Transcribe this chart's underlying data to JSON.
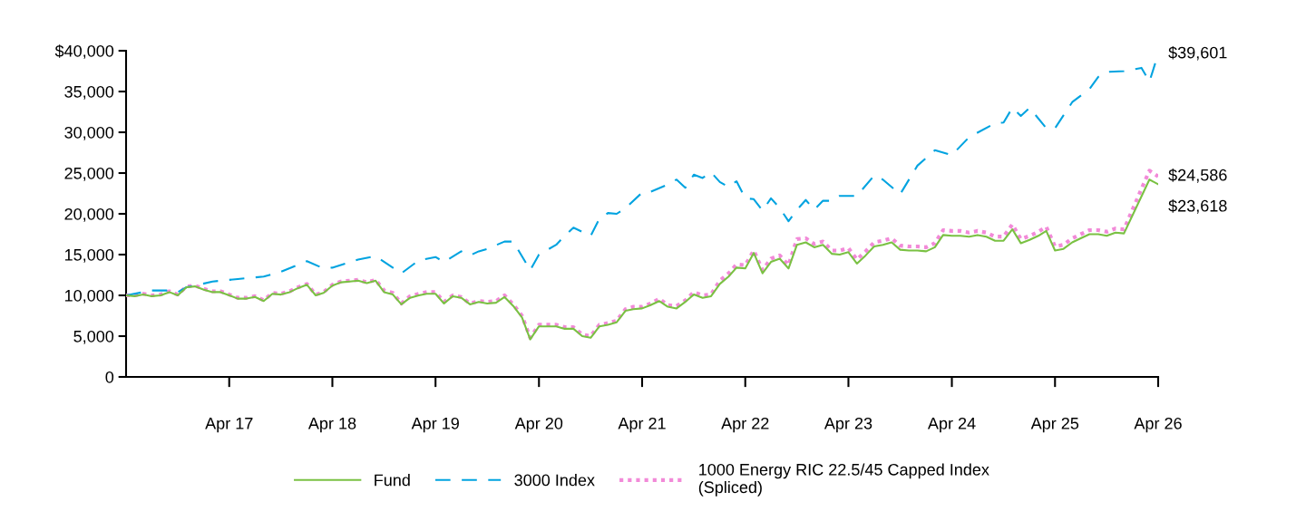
{
  "chart_data": {
    "type": "line",
    "x": [
      "2016-04",
      "2016-05",
      "2016-06",
      "2016-07",
      "2016-08",
      "2016-09",
      "2016-10",
      "2016-11",
      "2016-12",
      "2017-01",
      "2017-02",
      "2017-03",
      "2017-04",
      "2017-05",
      "2017-06",
      "2017-07",
      "2017-08",
      "2017-09",
      "2017-10",
      "2017-11",
      "2017-12",
      "2018-01",
      "2018-02",
      "2018-03",
      "2018-04",
      "2018-05",
      "2018-06",
      "2018-07",
      "2018-08",
      "2018-09",
      "2018-10",
      "2018-11",
      "2018-12",
      "2019-01",
      "2019-02",
      "2019-03",
      "2019-04",
      "2019-05",
      "2019-06",
      "2019-07",
      "2019-08",
      "2019-09",
      "2019-10",
      "2019-11",
      "2019-12",
      "2020-01",
      "2020-02",
      "2020-03",
      "2020-04",
      "2020-05",
      "2020-06",
      "2020-07",
      "2020-08",
      "2020-09",
      "2020-10",
      "2020-11",
      "2020-12",
      "2021-01",
      "2021-02",
      "2021-03",
      "2021-04",
      "2021-05",
      "2021-06",
      "2021-07",
      "2021-08",
      "2021-09",
      "2021-10",
      "2021-11",
      "2021-12",
      "2022-01",
      "2022-02",
      "2022-03",
      "2022-04",
      "2022-05",
      "2022-06",
      "2022-07",
      "2022-08",
      "2022-09",
      "2022-10",
      "2022-11",
      "2022-12",
      "2023-01",
      "2023-02",
      "2023-03",
      "2023-04",
      "2023-05",
      "2023-06",
      "2023-07",
      "2023-08",
      "2023-09",
      "2023-10",
      "2023-11",
      "2023-12",
      "2024-01",
      "2024-02",
      "2024-03",
      "2024-04",
      "2024-05",
      "2024-06",
      "2024-07",
      "2024-08",
      "2024-09",
      "2024-10",
      "2024-11",
      "2024-12",
      "2025-01",
      "2025-02",
      "2025-03",
      "2025-04",
      "2025-05",
      "2025-06",
      "2025-07",
      "2025-08",
      "2025-09",
      "2025-10",
      "2025-11",
      "2025-12",
      "2026-03",
      "2026-04"
    ],
    "series": [
      {
        "name": "Fund",
        "color": "#7ac143",
        "line_style": "solid",
        "values": [
          10000,
          9900,
          10100,
          9900,
          10000,
          10400,
          10000,
          11000,
          11100,
          10700,
          10400,
          10400,
          10000,
          9600,
          9600,
          9800,
          9300,
          10200,
          10100,
          10400,
          10900,
          11300,
          10000,
          10300,
          11200,
          11600,
          11700,
          11800,
          11500,
          11800,
          10400,
          10100,
          8900,
          9700,
          10000,
          10200,
          10200,
          9000,
          9900,
          9700,
          8900,
          9200,
          9000,
          9100,
          9800,
          8700,
          7300,
          4600,
          6200,
          6200,
          6200,
          5900,
          5900,
          5000,
          4800,
          6200,
          6400,
          6700,
          8100,
          8300,
          8400,
          8800,
          9300,
          8600,
          8400,
          9200,
          10100,
          9700,
          9900,
          11400,
          12300,
          13400,
          13300,
          15200,
          12700,
          14100,
          14500,
          13300,
          16200,
          16500,
          15900,
          16200,
          15100,
          15000,
          15300,
          13900,
          14900,
          16000,
          16200,
          16500,
          15600,
          15500,
          15500,
          15400,
          15900,
          17400,
          17300,
          17300,
          17200,
          17400,
          17200,
          16700,
          16700,
          18100,
          16400,
          16800,
          17300,
          17900,
          15500,
          15700,
          16500,
          17000,
          17500,
          17500,
          17300,
          17700,
          17600,
          24200,
          23618
        ]
      },
      {
        "name": "3000 Index",
        "color": "#00a3e0",
        "line_style": "dashed",
        "x": [
          "2016-04",
          "2016-07",
          "2016-09",
          "2016-10",
          "2016-11",
          "2016-12",
          "2017-02",
          "2017-05",
          "2017-08",
          "2017-10",
          "2018-01",
          "2018-03",
          "2018-04",
          "2018-07",
          "2018-09",
          "2018-12",
          "2019-02",
          "2019-04",
          "2019-05",
          "2019-07",
          "2019-08",
          "2019-09",
          "2019-10",
          "2019-12",
          "2020-01",
          "2020-03",
          "2020-04",
          "2020-06",
          "2020-07",
          "2020-08",
          "2020-10",
          "2020-11",
          "2020-12",
          "2021-01",
          "2021-02",
          "2021-04",
          "2021-05",
          "2021-07",
          "2021-08",
          "2021-09",
          "2021-10",
          "2021-11",
          "2021-12",
          "2022-01",
          "2022-02",
          "2022-03",
          "2022-04",
          "2022-05",
          "2022-06",
          "2022-07",
          "2022-08",
          "2022-09",
          "2022-10",
          "2022-11",
          "2022-12",
          "2023-01",
          "2023-02",
          "2023-03",
          "2023-05",
          "2023-07",
          "2023-08",
          "2023-10",
          "2023-12",
          "2024-02",
          "2024-04",
          "2024-06",
          "2024-09",
          "2024-10",
          "2024-11",
          "2024-12",
          "2025-01",
          "2025-03",
          "2025-04",
          "2025-06",
          "2025-08",
          "2025-09",
          "2025-10",
          "2025-12",
          "2026-02",
          "2026-03",
          "2026-04"
        ],
        "values": [
          10000,
          10600,
          10600,
          10400,
          11000,
          11200,
          11700,
          12000,
          12300,
          12900,
          14200,
          13300,
          13400,
          14400,
          14800,
          12700,
          14300,
          14700,
          14100,
          15400,
          14900,
          15400,
          15700,
          16600,
          16600,
          13100,
          15000,
          16200,
          17300,
          18300,
          17300,
          19400,
          20100,
          20000,
          20700,
          22600,
          22700,
          23600,
          24200,
          23200,
          24800,
          24400,
          25100,
          23900,
          23300,
          24000,
          21900,
          21800,
          20400,
          21900,
          20700,
          19100,
          20500,
          21700,
          20500,
          21600,
          21600,
          22200,
          22200,
          24700,
          24200,
          22400,
          25900,
          27800,
          27200,
          29400,
          31100,
          31200,
          33000,
          32000,
          33000,
          30500,
          30500,
          33700,
          35300,
          36800,
          37400,
          37500,
          37900,
          36200,
          39601
        ]
      },
      {
        "name": "1000 Energy RIC 22.5/45 Capped Index\n(Spliced)",
        "color": "#f28ad8",
        "line_style": "dotted",
        "values": [
          10000,
          10000,
          10200,
          10000,
          10100,
          10500,
          10100,
          11100,
          11200,
          10800,
          10500,
          10500,
          10100,
          9700,
          9700,
          9900,
          9400,
          10300,
          10200,
          10500,
          11000,
          11400,
          10100,
          10400,
          11300,
          11700,
          11800,
          11900,
          11600,
          11900,
          10600,
          10300,
          9000,
          9900,
          10200,
          10400,
          10400,
          9200,
          10000,
          9800,
          9000,
          9300,
          9200,
          9300,
          10000,
          8900,
          7500,
          4800,
          6400,
          6400,
          6400,
          6100,
          6100,
          5200,
          5000,
          6400,
          6600,
          6900,
          8300,
          8600,
          8600,
          9000,
          9600,
          8800,
          8700,
          9400,
          10400,
          10000,
          10100,
          11800,
          12700,
          13800,
          13700,
          15500,
          13100,
          14500,
          14900,
          13700,
          16900,
          17000,
          16300,
          16600,
          15500,
          15500,
          15800,
          14400,
          15400,
          16500,
          16700,
          17000,
          16100,
          16000,
          16000,
          15900,
          16400,
          18000,
          17900,
          17900,
          17700,
          17900,
          17700,
          17200,
          17200,
          18700,
          16900,
          17300,
          17800,
          18400,
          16000,
          16200,
          17000,
          17500,
          18000,
          18000,
          17800,
          18200,
          18100,
          25300,
          24586
        ]
      }
    ],
    "xlim": [
      "2016-04",
      "2026-04"
    ],
    "xticks": [
      {
        "value": "2017-04",
        "label": "Apr 17"
      },
      {
        "value": "2018-04",
        "label": "Apr 18"
      },
      {
        "value": "2019-04",
        "label": "Apr 19"
      },
      {
        "value": "2020-04",
        "label": "Apr 20"
      },
      {
        "value": "2021-04",
        "label": "Apr 21"
      },
      {
        "value": "2022-04",
        "label": "Apr 22"
      },
      {
        "value": "2023-04",
        "label": "Apr 23"
      },
      {
        "value": "2024-04",
        "label": "Apr 24"
      },
      {
        "value": "2025-04",
        "label": "Apr 25"
      },
      {
        "value": "2026-04",
        "label": "Apr 26"
      }
    ],
    "ylim": [
      0,
      40000
    ],
    "yticks": [
      0,
      {
        "value": 5000,
        "label": "5,000"
      },
      {
        "value": 10000,
        "label": "10,000"
      },
      {
        "value": 15000,
        "label": "15,000"
      },
      {
        "value": 20000,
        "label": "20,000"
      },
      {
        "value": 25000,
        "label": "25,000"
      },
      {
        "value": 30000,
        "label": "30,000"
      },
      {
        "value": 35000,
        "label": "35,000"
      },
      {
        "value": 40000,
        "label": "$40,000"
      }
    ],
    "annotations": [
      {
        "text": "$39,601",
        "x": "2026-04",
        "y": 39601
      },
      {
        "text": "$24,586",
        "x": "2026-04",
        "y": 24586
      },
      {
        "text": "$23,618",
        "x": "2026-04",
        "y": 23618
      }
    ],
    "grid": false,
    "legend": "bottom",
    "marker": "none"
  }
}
